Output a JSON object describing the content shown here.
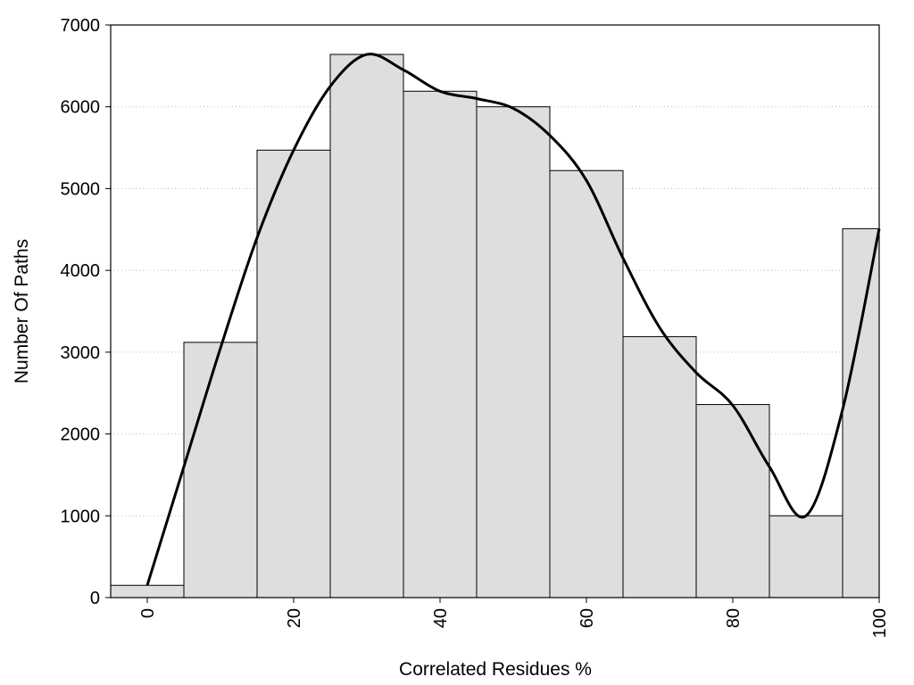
{
  "chart_data": {
    "type": "bar",
    "title": "",
    "xlabel": "Correlated Residues %",
    "ylabel": "Number Of Paths",
    "bin_width": 10,
    "x": [
      0,
      10,
      20,
      30,
      40,
      50,
      60,
      70,
      80,
      90,
      100
    ],
    "values": [
      150,
      3120,
      5470,
      6640,
      6190,
      6000,
      5220,
      3190,
      2360,
      1000,
      4510
    ],
    "curve": {
      "x": [
        0,
        5,
        10,
        15,
        20,
        25,
        30,
        35,
        40,
        45,
        50,
        55,
        60,
        65,
        70,
        75,
        80,
        85,
        90,
        95,
        100
      ],
      "y": [
        150,
        1600,
        3050,
        4400,
        5470,
        6250,
        6640,
        6450,
        6190,
        6100,
        5980,
        5650,
        5100,
        4150,
        3300,
        2750,
        2350,
        1600,
        1000,
        2300,
        4510
      ]
    },
    "xlim": [
      -5,
      100
    ],
    "ylim": [
      0,
      7000
    ],
    "xticks": [
      "0",
      "20",
      "40",
      "60",
      "80",
      "100"
    ],
    "yticks": [
      "0",
      "1000",
      "2000",
      "3000",
      "4000",
      "5000",
      "6000",
      "7000"
    ],
    "grid": "horizontal dotted",
    "colors": {
      "bar_fill": "#dedede",
      "bar_stroke": "#000000",
      "curve": "#000000",
      "grid": "#bbbbbb"
    }
  }
}
